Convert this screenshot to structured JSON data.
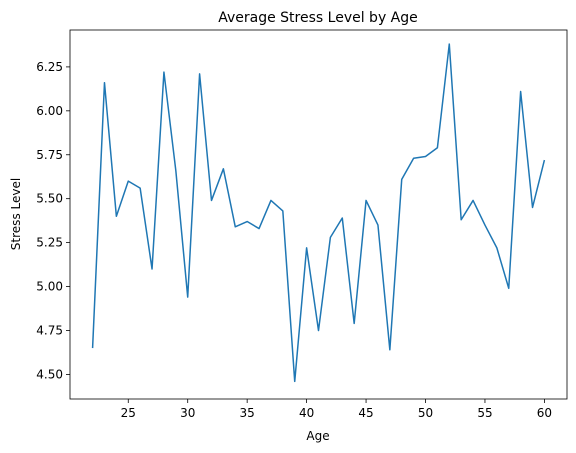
{
  "chart_data": {
    "type": "line",
    "title": "Average Stress Level by Age",
    "xlabel": "Age",
    "ylabel": "Stress Level",
    "xlim": [
      20.1,
      61.9
    ],
    "ylim": [
      4.36,
      6.46
    ],
    "xticks": [
      25,
      30,
      35,
      40,
      45,
      50,
      55,
      60
    ],
    "yticks": [
      4.5,
      4.75,
      5.0,
      5.25,
      5.5,
      5.75,
      6.0,
      6.25
    ],
    "grid": false,
    "line_color": "#1f77b4",
    "series": [
      {
        "x": [
          22,
          23,
          24,
          25,
          26,
          27,
          28,
          29,
          30,
          31,
          32,
          33,
          34,
          35,
          36,
          37,
          38,
          39,
          40,
          41,
          42,
          43,
          44,
          45,
          46,
          47,
          48,
          49,
          50,
          51,
          52,
          53,
          54,
          55,
          56,
          57,
          58,
          59,
          60
        ],
        "values": [
          4.65,
          6.16,
          5.4,
          5.6,
          5.56,
          5.1,
          6.22,
          5.66,
          4.94,
          6.21,
          5.49,
          5.67,
          5.34,
          5.37,
          5.33,
          5.49,
          5.43,
          4.46,
          5.22,
          4.75,
          5.28,
          5.39,
          4.79,
          5.49,
          5.35,
          4.64,
          5.61,
          5.73,
          5.74,
          5.79,
          6.38,
          5.38,
          5.49,
          5.35,
          5.22,
          4.99,
          6.11,
          5.45,
          5.72
        ]
      }
    ]
  }
}
